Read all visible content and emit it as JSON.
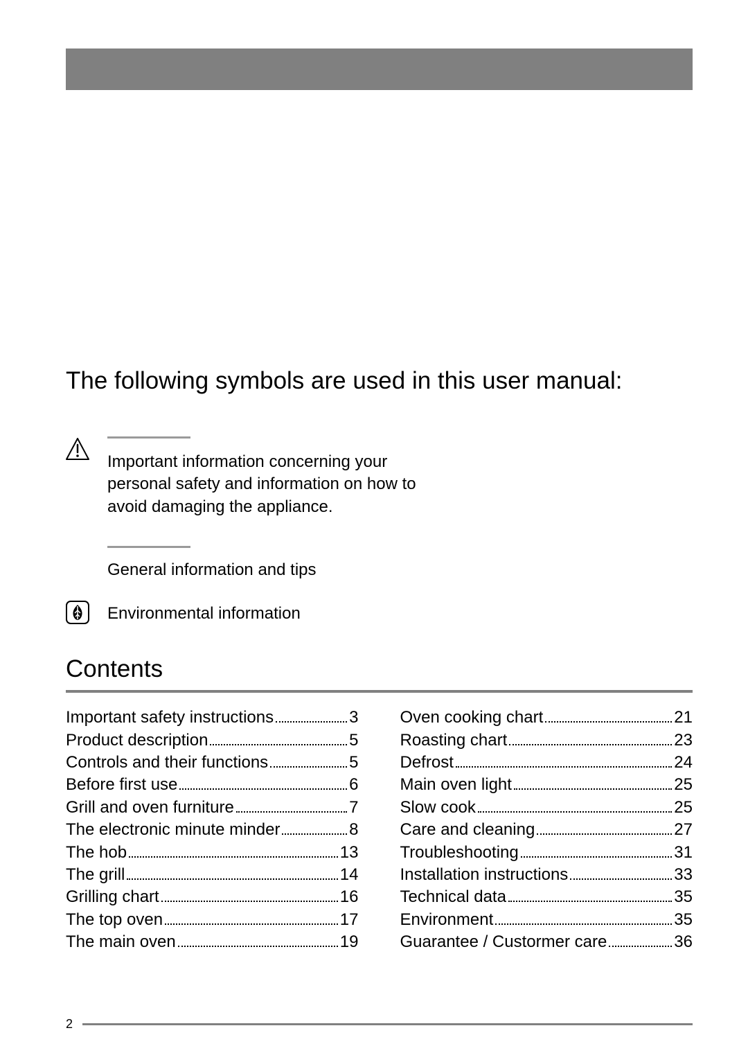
{
  "colors": {
    "header_bar": "#808080",
    "divider": "#9a9a9a",
    "contents_divider": "#808080",
    "footer_line": "#808080",
    "text": "#000000",
    "background": "#ffffff"
  },
  "typography": {
    "title_fontsize": 35,
    "body_fontsize": 24,
    "footer_fontsize": 18
  },
  "main_title": "The following symbols are used in this user manual:",
  "symbols": {
    "warning": {
      "icon": "warning-icon",
      "text": "Important information concerning your personal safety and information on how to avoid damaging the appliance."
    },
    "general": {
      "text": "General information and tips"
    },
    "environment": {
      "icon": "leaf-icon",
      "text": "Environmental information"
    }
  },
  "contents_title": "Contents",
  "toc": {
    "left": [
      {
        "label": "Important safety instructions",
        "page": "3"
      },
      {
        "label": "Product description",
        "page": "5"
      },
      {
        "label": "Controls and their functions",
        "page": "5"
      },
      {
        "label": "Before first use",
        "page": "6"
      },
      {
        "label": "Grill and oven furniture",
        "page": "7"
      },
      {
        "label": "The electronic minute minder",
        "page": "8"
      },
      {
        "label": "The hob",
        "page": "13"
      },
      {
        "label": "The grill",
        "page": "14"
      },
      {
        "label": "Grilling chart",
        "page": "16"
      },
      {
        "label": "The top oven",
        "page": "17"
      },
      {
        "label": "The main oven",
        "page": "19"
      }
    ],
    "right": [
      {
        "label": "Oven cooking chart",
        "page": "21"
      },
      {
        "label": "Roasting chart",
        "page": "23"
      },
      {
        "label": "Defrost",
        "page": "24"
      },
      {
        "label": "Main oven light",
        "page": "25"
      },
      {
        "label": "Slow cook",
        "page": "25"
      },
      {
        "label": "Care and cleaning",
        "page": "27"
      },
      {
        "label": "Troubleshooting",
        "page": "31"
      },
      {
        "label": "Installation instructions",
        "page": "33"
      },
      {
        "label": "Technical data",
        "page": "35"
      },
      {
        "label": "Environment",
        "page": "35"
      },
      {
        "label": "Guarantee / Custormer care",
        "page": "36"
      }
    ]
  },
  "footer_page": "2"
}
